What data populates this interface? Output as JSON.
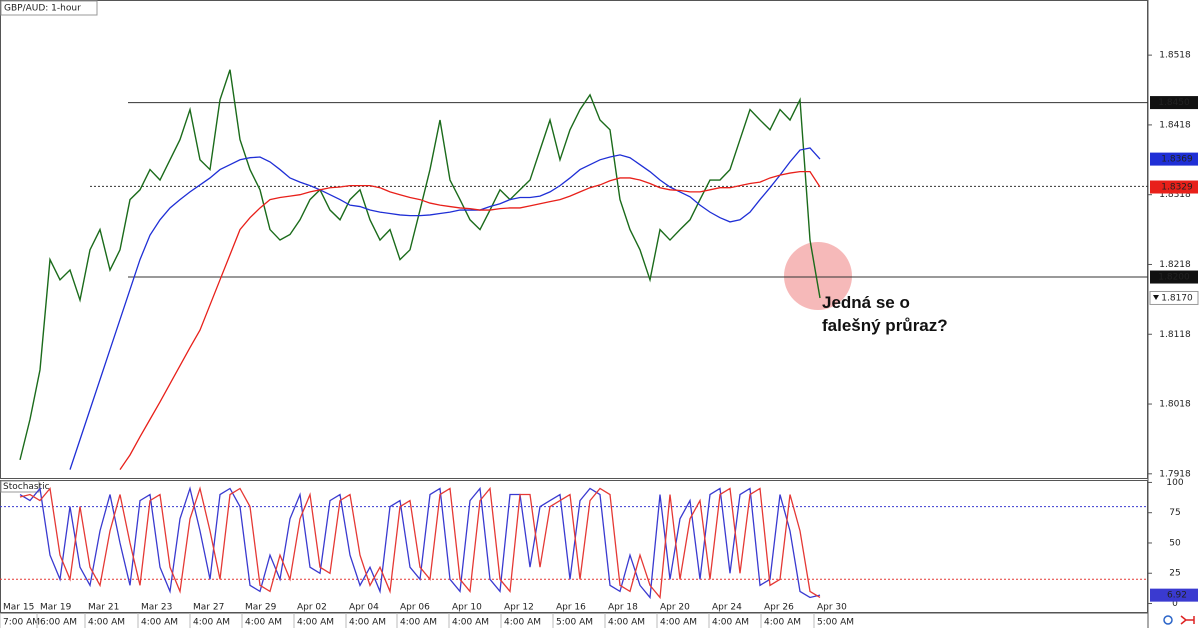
{
  "chart_data": [
    {
      "type": "line",
      "title": "GBP/AUD: 1-hour",
      "ylim": [
        1.7912,
        1.8597
      ],
      "yticks": [
        1.7918,
        1.8018,
        1.8118,
        1.8218,
        1.8318,
        1.8418,
        1.8518
      ],
      "levels": [
        {
          "value": 1.845,
          "label": "1.8450"
        },
        {
          "value": 1.82,
          "label": "1.8200"
        }
      ],
      "dotted_levels": [
        1.833
      ],
      "series": [
        {
          "color": "#1b6b1b",
          "tag_color": "#ffffff",
          "values": [
            1.7938,
            1.7996,
            1.8067,
            1.8225,
            1.8196,
            1.821,
            1.8167,
            1.8239,
            1.8268,
            1.821,
            1.8239,
            1.8311,
            1.8325,
            1.8354,
            1.8339,
            1.8368,
            1.8397,
            1.844,
            1.8368,
            1.8354,
            1.8454,
            1.8497,
            1.8397,
            1.8354,
            1.8325,
            1.8268,
            1.8253,
            1.8261,
            1.8282,
            1.8311,
            1.8325,
            1.8296,
            1.8282,
            1.8311,
            1.8325,
            1.8282,
            1.8253,
            1.8268,
            1.8225,
            1.8239,
            1.8296,
            1.8354,
            1.8425,
            1.8339,
            1.8311,
            1.8282,
            1.8268,
            1.8296,
            1.8325,
            1.8311,
            1.8325,
            1.8339,
            1.8382,
            1.8425,
            1.8368,
            1.8411,
            1.844,
            1.8461,
            1.8425,
            1.8411,
            1.8311,
            1.8268,
            1.8239,
            1.8196,
            1.8268,
            1.8253,
            1.8268,
            1.8282,
            1.8311,
            1.8339,
            1.8339,
            1.8354,
            1.8397,
            1.844,
            1.8425,
            1.8411,
            1.844,
            1.8425,
            1.8454,
            1.8253,
            1.817
          ],
          "value_labels": [
            null,
            null,
            null,
            null,
            null,
            null,
            null,
            null,
            null,
            null,
            null,
            null,
            null,
            null,
            null,
            null,
            null,
            null,
            null,
            null,
            null,
            null,
            null,
            null,
            null,
            null,
            null,
            null,
            null,
            null,
            null,
            null,
            null,
            null,
            null,
            null,
            null,
            null,
            null,
            null,
            null,
            null,
            null,
            null,
            null,
            null,
            null,
            null,
            null,
            null,
            null,
            null,
            null,
            null,
            null,
            null,
            null,
            null,
            null,
            null,
            null,
            null,
            null,
            null,
            null,
            null,
            null,
            null,
            null,
            null,
            null,
            null,
            null,
            null,
            null,
            null,
            null,
            null,
            null,
            null,
            "1.8170"
          ]
        },
        {
          "color": "#1f2fd6",
          "tag_color": "#1f2fd6",
          "values": [
            null,
            null,
            null,
            null,
            null,
            1.7924,
            1.7967,
            1.801,
            1.8053,
            1.8096,
            1.8139,
            1.8182,
            1.8225,
            1.826,
            1.8282,
            1.8299,
            1.8311,
            1.8322,
            1.8332,
            1.8342,
            1.8354,
            1.8361,
            1.8368,
            1.8371,
            1.8372,
            1.8365,
            1.8354,
            1.8342,
            1.8336,
            1.8331,
            1.8325,
            1.8318,
            1.8311,
            1.8303,
            1.8301,
            1.8296,
            1.8293,
            1.8291,
            1.8289,
            1.8288,
            1.8288,
            1.8289,
            1.8291,
            1.8293,
            1.8296,
            1.8296,
            1.8296,
            1.8301,
            1.8305,
            1.8311,
            1.8314,
            1.8314,
            1.8316,
            1.8322,
            1.8331,
            1.8342,
            1.8354,
            1.8361,
            1.8368,
            1.8372,
            1.8375,
            1.8371,
            1.8361,
            1.8351,
            1.8339,
            1.8329,
            1.8322,
            1.8315,
            1.8303,
            1.8293,
            1.8285,
            1.8279,
            1.8282,
            1.8293,
            1.8311,
            1.8328,
            1.8346,
            1.8365,
            1.8382,
            1.8385,
            1.8369
          ]
        },
        {
          "color": "#e8201a",
          "tag_color": "#e8201a",
          "values": [
            null,
            null,
            null,
            null,
            null,
            null,
            null,
            null,
            null,
            null,
            1.7924,
            1.7945,
            1.7971,
            1.7996,
            1.8021,
            1.8047,
            1.8073,
            1.8099,
            1.8124,
            1.816,
            1.8196,
            1.8232,
            1.8268,
            1.8285,
            1.8299,
            1.8311,
            1.8314,
            1.8316,
            1.8318,
            1.8322,
            1.8325,
            1.8328,
            1.8329,
            1.8331,
            1.8331,
            1.8331,
            1.8328,
            1.8322,
            1.8318,
            1.8314,
            1.8311,
            1.8306,
            1.8303,
            1.8301,
            1.8299,
            1.8298,
            1.8296,
            1.8296,
            1.8298,
            1.8299,
            1.8299,
            1.8302,
            1.8305,
            1.8308,
            1.8311,
            1.8316,
            1.8322,
            1.8328,
            1.8332,
            1.8338,
            1.8342,
            1.8342,
            1.8339,
            1.8334,
            1.8328,
            1.8325,
            1.8324,
            1.8322,
            1.8322,
            1.8325,
            1.8328,
            1.8328,
            1.8331,
            1.8334,
            1.8336,
            1.8342,
            1.8346,
            1.8349,
            1.8351,
            1.8351,
            1.8329
          ]
        }
      ],
      "annotation": [
        "Jedná se o",
        "falešný průraz?"
      ],
      "x_labels": [
        {
          "date": "Mar 15",
          "time": "7:00 AM"
        },
        {
          "date": "Mar 19",
          "time": "6:00 AM"
        },
        {
          "date": "Mar 21",
          "time": "4:00 AM"
        },
        {
          "date": "Mar 23",
          "time": "4:00 AM"
        },
        {
          "date": "Mar 27",
          "time": "4:00 AM"
        },
        {
          "date": "Mar 29",
          "time": "4:00 AM"
        },
        {
          "date": "Apr 02",
          "time": "4:00 AM"
        },
        {
          "date": "Apr 04",
          "time": "4:00 AM"
        },
        {
          "date": "Apr 06",
          "time": "4:00 AM"
        },
        {
          "date": "Apr 10",
          "time": "4:00 AM"
        },
        {
          "date": "Apr 12",
          "time": "4:00 AM"
        },
        {
          "date": "Apr 16",
          "time": "5:00 AM"
        },
        {
          "date": "Apr 18",
          "time": "4:00 AM"
        },
        {
          "date": "Apr 20",
          "time": "4:00 AM"
        },
        {
          "date": "Apr 24",
          "time": "4:00 AM"
        },
        {
          "date": "Apr 26",
          "time": "4:00 AM"
        },
        {
          "date": "Apr 30",
          "time": "5:00 AM"
        }
      ]
    },
    {
      "type": "line",
      "title": "Stochastic",
      "ylim": [
        -7,
        102
      ],
      "yticks": [
        0,
        25,
        50,
        75,
        100
      ],
      "dotted_levels": [
        {
          "value": 80,
          "color": "#3a3ad0"
        },
        {
          "value": 20,
          "color": "#e53935"
        }
      ],
      "series": [
        {
          "color": "#3a3ad0",
          "tag_color": "#3a3ad0",
          "values": [
            90,
            85,
            95,
            40,
            20,
            80,
            30,
            15,
            60,
            90,
            50,
            15,
            85,
            90,
            30,
            10,
            70,
            95,
            60,
            20,
            90,
            95,
            80,
            15,
            10,
            40,
            20,
            70,
            90,
            30,
            25,
            85,
            90,
            40,
            15,
            30,
            10,
            80,
            85,
            30,
            20,
            90,
            95,
            20,
            10,
            85,
            95,
            20,
            10,
            90,
            90,
            30,
            80,
            85,
            90,
            20,
            85,
            95,
            90,
            15,
            10,
            40,
            15,
            5,
            90,
            20,
            70,
            85,
            20,
            90,
            95,
            25,
            90,
            95,
            15,
            20,
            90,
            60,
            10,
            5,
            6.92
          ]
        },
        {
          "color": "#e53935",
          "values": [
            88,
            90,
            85,
            95,
            40,
            20,
            80,
            30,
            15,
            60,
            90,
            50,
            15,
            85,
            90,
            30,
            10,
            70,
            95,
            60,
            20,
            90,
            95,
            80,
            15,
            10,
            40,
            20,
            70,
            90,
            30,
            25,
            85,
            90,
            40,
            15,
            30,
            10,
            80,
            85,
            30,
            20,
            90,
            95,
            20,
            10,
            85,
            95,
            20,
            10,
            90,
            90,
            30,
            80,
            85,
            90,
            20,
            85,
            95,
            90,
            15,
            10,
            40,
            15,
            5,
            90,
            20,
            70,
            85,
            20,
            90,
            95,
            25,
            90,
            95,
            15,
            20,
            90,
            60,
            10,
            5
          ]
        }
      ]
    }
  ]
}
